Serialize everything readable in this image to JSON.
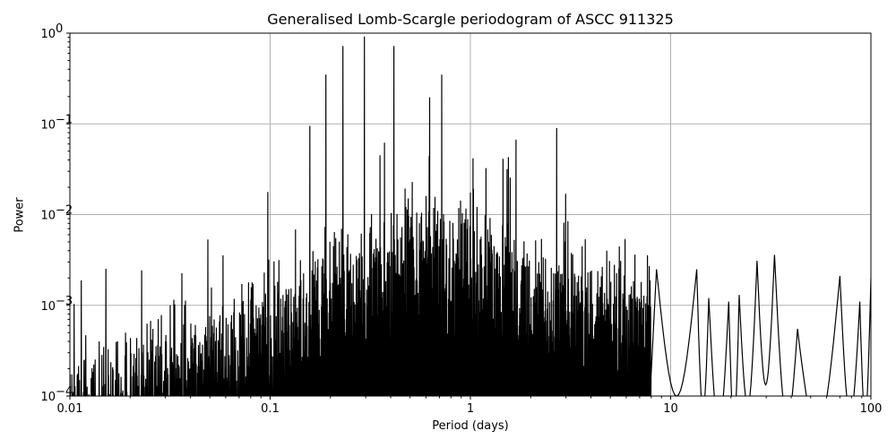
{
  "chart_data": {
    "type": "line",
    "title": "Generalised Lomb-Scargle periodogram of ASCC 911325",
    "xlabel": "Period (days)",
    "ylabel": "Power",
    "xscale": "log",
    "yscale": "log",
    "xlim": [
      0.01,
      100
    ],
    "ylim": [
      0.0001,
      1
    ],
    "grid": true,
    "xticks": [
      "0.01",
      "0.1",
      "1",
      "10",
      "100"
    ],
    "yticks": [
      {
        "base": "10",
        "exp": "0"
      },
      {
        "base": "10",
        "exp": "−1"
      },
      {
        "base": "10",
        "exp": "−2"
      },
      {
        "base": "10",
        "exp": "−3"
      },
      {
        "base": "10",
        "exp": "−4"
      }
    ],
    "line_color": "#000000",
    "grid_color": "#b0b0b0",
    "dominant_peaks": [
      {
        "period": 0.158,
        "power": 0.095
      },
      {
        "period": 0.19,
        "power": 0.35
      },
      {
        "period": 0.231,
        "power": 0.72
      },
      {
        "period": 0.295,
        "power": 0.92
      },
      {
        "period": 0.415,
        "power": 0.72
      },
      {
        "period": 0.72,
        "power": 0.35
      },
      {
        "period": 0.6,
        "power": 0.016
      },
      {
        "period": 1.55,
        "power": 0.043
      },
      {
        "period": 2.7,
        "power": 0.09
      },
      {
        "period": 4.8,
        "power": 0.004
      }
    ],
    "long_period_envelope": [
      {
        "period": 8.5,
        "power": 0.0025
      },
      {
        "period": 13.5,
        "power": 0.0025
      },
      {
        "period": 15.5,
        "power": 0.0012
      },
      {
        "period": 19.5,
        "power": 0.0011
      },
      {
        "period": 22,
        "power": 0.0013
      },
      {
        "period": 27,
        "power": 0.0031
      },
      {
        "period": 33,
        "power": 0.0036
      },
      {
        "period": 43,
        "power": 0.00055
      },
      {
        "period": 70,
        "power": 0.0021
      },
      {
        "period": 88,
        "power": 0.0011
      },
      {
        "period": 100,
        "power": 0.002
      }
    ]
  }
}
